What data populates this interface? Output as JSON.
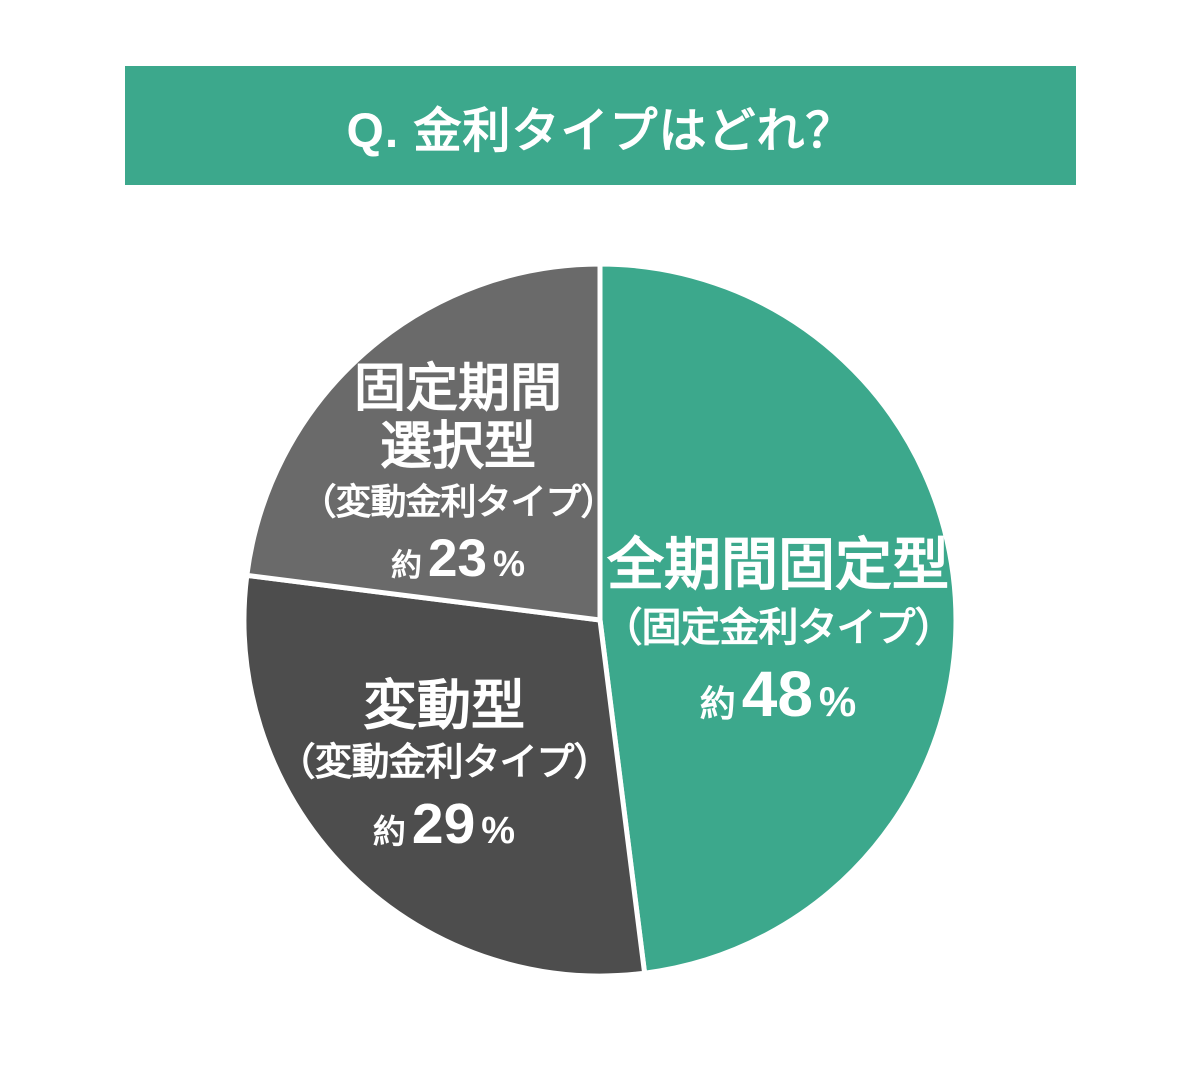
{
  "page": {
    "background": "#ffffff"
  },
  "header": {
    "title": "Q. 金利タイプはどれ？",
    "background": "#3CA88C",
    "text_color": "#ffffff"
  },
  "chart_data": {
    "type": "pie",
    "title": "Q. 金利タイプはどれ？",
    "start_angle_deg_from_top": 0,
    "direction": "clockwise",
    "separator_color": "#ffffff",
    "label_text_color": "#ffffff",
    "slices": [
      {
        "label": "全期間固定型",
        "sublabel": "（固定金利タイプ）",
        "approx": "約",
        "value": 48,
        "unit": "%",
        "color": "#3CA88C"
      },
      {
        "label": "変動型",
        "sublabel": "（変動金利タイプ）",
        "approx": "約",
        "value": 29,
        "unit": "%",
        "color": "#4D4D4D"
      },
      {
        "label": "固定期間選択型",
        "label_lines": [
          "固定期間",
          "選択型"
        ],
        "sublabel": "（変動金利タイプ）",
        "approx": "約",
        "value": 23,
        "unit": "%",
        "color": "#6A6A6A"
      }
    ]
  }
}
